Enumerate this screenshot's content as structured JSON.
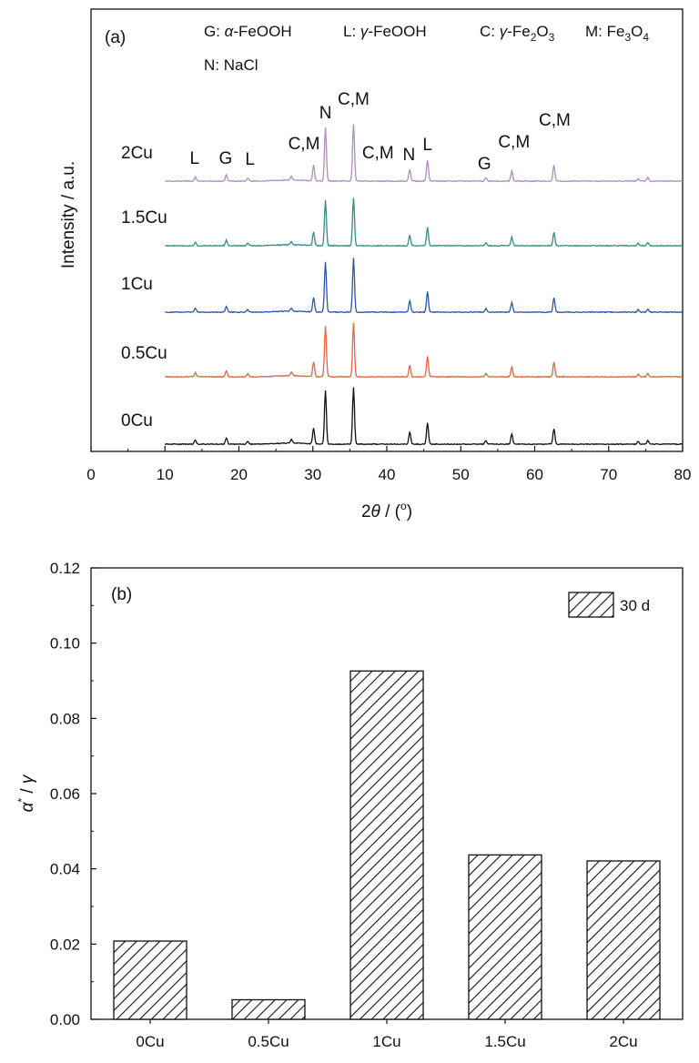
{
  "chart_data": [
    {
      "panel": "(a)",
      "type": "line",
      "xlabel": "2θ / (°)",
      "xlabel_parts": {
        "pre": "2",
        "theta": "θ",
        "mid": " / (",
        "deg": "o",
        "post": ")"
      },
      "ylabel": "Intensity / a.u.",
      "xlim": [
        0,
        80
      ],
      "x_ticks": [
        "0",
        "10",
        "20",
        "30",
        "40",
        "50",
        "60",
        "70",
        "80"
      ],
      "legend_lines": [
        {
          "prefix": "G: ",
          "greek": "α",
          "text": "-FeOOH"
        },
        {
          "prefix": "L: ",
          "greek": "γ",
          "text": "-FeOOH"
        },
        {
          "prefix": "C: ",
          "greek": "γ",
          "text": "-Fe",
          "sub": "2",
          "tail": "O",
          "sub2": "3"
        },
        {
          "prefix": "M: ",
          "text": "Fe",
          "sub": "3",
          "tail": "O",
          "sub2": "4"
        },
        {
          "prefix": "N: ",
          "text": "NaCl"
        }
      ],
      "peak_annotations": [
        {
          "label": "L",
          "x": 14.0
        },
        {
          "label": "G",
          "x": 18.2
        },
        {
          "label": "L",
          "x": 21.5
        },
        {
          "label": "C,M",
          "x": 28.8
        },
        {
          "label": "N",
          "x": 31.7
        },
        {
          "label": "C,M",
          "x": 35.5
        },
        {
          "label": "C,M",
          "x": 38.8
        },
        {
          "label": "N",
          "x": 43.0
        },
        {
          "label": "L",
          "x": 45.5
        },
        {
          "label": "G",
          "x": 53.2
        },
        {
          "label": "C,M",
          "x": 57.2
        },
        {
          "label": "C,M",
          "x": 62.7
        }
      ],
      "peaks": [
        {
          "x": 14.1,
          "h": 0.06
        },
        {
          "x": 18.3,
          "h": 0.09
        },
        {
          "x": 21.2,
          "h": 0.04
        },
        {
          "x": 27.1,
          "h": 0.05
        },
        {
          "x": 30.1,
          "h": 0.22
        },
        {
          "x": 31.7,
          "h": 0.75
        },
        {
          "x": 35.5,
          "h": 0.8
        },
        {
          "x": 43.1,
          "h": 0.17
        },
        {
          "x": 45.5,
          "h": 0.3
        },
        {
          "x": 53.4,
          "h": 0.05
        },
        {
          "x": 56.9,
          "h": 0.14
        },
        {
          "x": 62.6,
          "h": 0.22
        },
        {
          "x": 74.0,
          "h": 0.04
        },
        {
          "x": 75.3,
          "h": 0.05
        }
      ],
      "series": [
        {
          "name": "0Cu",
          "color": "#111111",
          "scale": 1.0
        },
        {
          "name": "0.5Cu",
          "color": "#e8623a",
          "scale": 0.95
        },
        {
          "name": "1Cu",
          "color": "#2a56a8",
          "scale": 0.95
        },
        {
          "name": "1.5Cu",
          "color": "#2e8f83",
          "scale": 0.85
        },
        {
          "name": "2Cu",
          "color": "#b08ac4",
          "scale": 1.0
        }
      ]
    },
    {
      "panel": "(b)",
      "type": "bar",
      "categories": [
        "0Cu",
        "0.5Cu",
        "1Cu",
        "1.5Cu",
        "2Cu"
      ],
      "series": [
        {
          "name": "30 d",
          "values": [
            0.0208,
            0.0052,
            0.0926,
            0.0437,
            0.0421
          ]
        }
      ],
      "ylabel": "α* / γ",
      "ylabel_parts": {
        "alpha": "α",
        "star": "*",
        "mid": " / ",
        "gamma": "γ"
      },
      "ylim": [
        0,
        0.12
      ],
      "y_ticks": [
        "0.00",
        "0.02",
        "0.04",
        "0.06",
        "0.08",
        "0.10",
        "0.12"
      ],
      "pattern": "diagonal-hatch"
    }
  ]
}
